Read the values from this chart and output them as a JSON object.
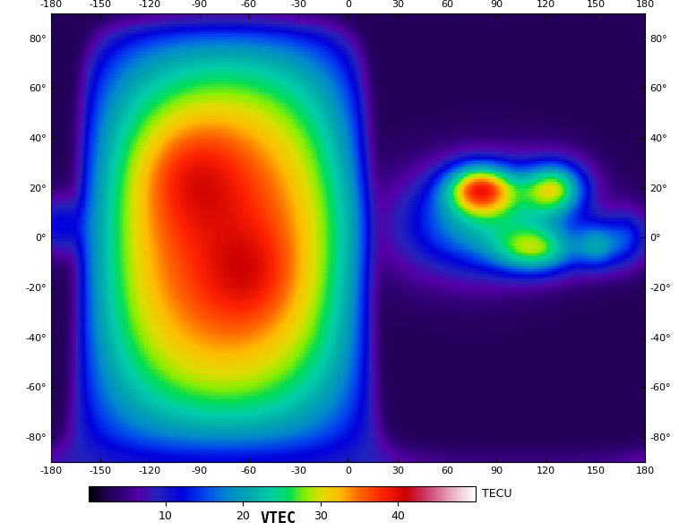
{
  "title": "VTEC",
  "colorbar_label": "TECU",
  "colorbar_ticks": [
    10,
    20,
    30,
    40
  ],
  "vmin": 0,
  "vmax": 50,
  "xticks": [
    -180,
    -150,
    -120,
    -90,
    -60,
    -30,
    0,
    30,
    60,
    90,
    120,
    150,
    180
  ],
  "yticks": [
    -80,
    -60,
    -40,
    -20,
    0,
    20,
    40,
    60,
    80
  ],
  "background_color": "#ffffff",
  "cmap_nodes": [
    [
      0.0,
      "#000000"
    ],
    [
      0.04,
      "#1a0045"
    ],
    [
      0.08,
      "#2d0070"
    ],
    [
      0.13,
      "#5500aa"
    ],
    [
      0.18,
      "#2222bb"
    ],
    [
      0.24,
      "#0000dd"
    ],
    [
      0.3,
      "#0044ee"
    ],
    [
      0.36,
      "#0088cc"
    ],
    [
      0.42,
      "#00aaaa"
    ],
    [
      0.47,
      "#00ccaa"
    ],
    [
      0.52,
      "#00dd55"
    ],
    [
      0.56,
      "#88ee00"
    ],
    [
      0.6,
      "#dddd00"
    ],
    [
      0.65,
      "#ffbb00"
    ],
    [
      0.7,
      "#ff6600"
    ],
    [
      0.76,
      "#ff2200"
    ],
    [
      0.82,
      "#cc0000"
    ],
    [
      0.87,
      "#cc3366"
    ],
    [
      0.91,
      "#dd7799"
    ],
    [
      0.95,
      "#eebbcc"
    ],
    [
      1.0,
      "#ffffff"
    ]
  ]
}
